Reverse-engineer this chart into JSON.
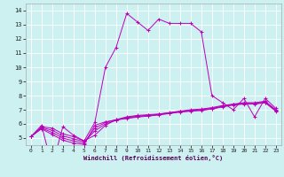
{
  "xlabel": "Windchill (Refroidissement éolien,°C)",
  "background_color": "#cdf0f0",
  "grid_color": "#ffffff",
  "line_color": "#bb00bb",
  "xlim": [
    -0.5,
    23.5
  ],
  "ylim": [
    4.5,
    14.5
  ],
  "xticks": [
    0,
    1,
    2,
    3,
    4,
    5,
    6,
    7,
    8,
    9,
    10,
    11,
    12,
    13,
    14,
    15,
    16,
    17,
    18,
    19,
    20,
    21,
    22,
    23
  ],
  "yticks": [
    5,
    6,
    7,
    8,
    9,
    10,
    11,
    12,
    13,
    14
  ],
  "figsize": [
    3.2,
    2.0
  ],
  "dpi": 100,
  "series": [
    {
      "x": [
        0,
        1,
        2,
        3,
        4,
        5,
        6,
        7,
        8,
        9,
        10,
        11,
        12,
        13,
        14,
        15,
        16,
        17,
        18,
        19,
        20,
        21,
        22,
        23
      ],
      "y": [
        5.1,
        5.9,
        3.0,
        5.8,
        5.2,
        4.8,
        6.1,
        10.0,
        11.4,
        13.8,
        13.2,
        12.6,
        13.4,
        13.1,
        13.1,
        13.1,
        12.5,
        8.0,
        7.5,
        7.0,
        7.8,
        6.5,
        7.8,
        7.1
      ]
    },
    {
      "x": [
        0,
        1,
        2,
        3,
        4,
        5,
        6,
        7,
        8,
        9,
        10,
        11,
        12,
        13,
        14,
        15,
        16,
        17,
        18,
        19,
        20,
        21,
        22,
        23
      ],
      "y": [
        5.1,
        5.8,
        5.7,
        5.3,
        5.1,
        4.8,
        5.2,
        5.9,
        6.3,
        6.5,
        6.6,
        6.65,
        6.7,
        6.8,
        6.9,
        7.0,
        7.05,
        7.15,
        7.3,
        7.4,
        7.5,
        7.5,
        7.6,
        7.0
      ]
    },
    {
      "x": [
        0,
        1,
        2,
        3,
        4,
        5,
        6,
        7,
        8,
        9,
        10,
        11,
        12,
        13,
        14,
        15,
        16,
        17,
        18,
        19,
        20,
        21,
        22,
        23
      ],
      "y": [
        5.1,
        5.75,
        5.55,
        5.15,
        4.95,
        4.75,
        5.5,
        6.0,
        6.25,
        6.45,
        6.55,
        6.6,
        6.68,
        6.78,
        6.88,
        6.95,
        7.0,
        7.1,
        7.25,
        7.38,
        7.45,
        7.45,
        7.55,
        6.95
      ]
    },
    {
      "x": [
        0,
        1,
        2,
        3,
        4,
        5,
        6,
        7,
        8,
        9,
        10,
        11,
        12,
        13,
        14,
        15,
        16,
        17,
        18,
        19,
        20,
        21,
        22,
        23
      ],
      "y": [
        5.1,
        5.7,
        5.4,
        5.0,
        4.8,
        4.65,
        5.7,
        6.1,
        6.3,
        6.42,
        6.52,
        6.58,
        6.66,
        6.76,
        6.86,
        6.92,
        6.97,
        7.08,
        7.22,
        7.36,
        7.42,
        7.42,
        7.52,
        6.92
      ]
    },
    {
      "x": [
        0,
        1,
        2,
        3,
        4,
        5,
        6,
        7,
        8,
        9,
        10,
        11,
        12,
        13,
        14,
        15,
        16,
        17,
        18,
        19,
        20,
        21,
        22,
        23
      ],
      "y": [
        5.1,
        5.65,
        5.25,
        4.85,
        4.65,
        4.55,
        5.9,
        6.15,
        6.28,
        6.38,
        6.48,
        6.55,
        6.63,
        6.73,
        6.83,
        6.9,
        6.95,
        7.05,
        7.2,
        7.34,
        7.4,
        7.4,
        7.5,
        6.9
      ]
    }
  ]
}
